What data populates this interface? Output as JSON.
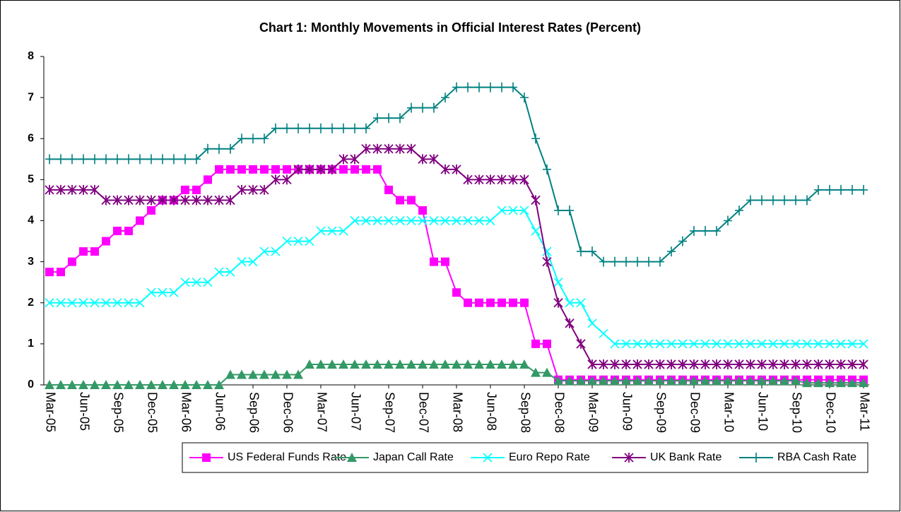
{
  "chart_data": {
    "type": "line",
    "title": "Chart 1: Monthly Movements in Official Interest Rates (Percent)",
    "categories": [
      "Mar-05",
      null,
      null,
      "Jun-05",
      null,
      null,
      "Sep-05",
      null,
      null,
      "Dec-05",
      null,
      null,
      "Mar-06",
      null,
      null,
      "Jun-06",
      null,
      null,
      "Sep-06",
      null,
      null,
      "Dec-06",
      null,
      null,
      "Mar-07",
      null,
      null,
      "Jun-07",
      null,
      null,
      "Sep-07",
      null,
      null,
      "Dec-07",
      null,
      null,
      "Mar-08",
      null,
      null,
      "Jun-08",
      null,
      null,
      "Sep-08",
      null,
      null,
      "Dec-08",
      null,
      null,
      "Mar-09",
      null,
      null,
      "Jun-09",
      null,
      null,
      "Sep-09",
      null,
      null,
      "Dec-09",
      null,
      null,
      "Mar-10",
      null,
      null,
      "Jun-10",
      null,
      null,
      "Sep-10",
      null,
      null,
      "Dec-10",
      null,
      null,
      "Mar-11"
    ],
    "ylim": [
      0,
      8
    ],
    "yticks": [
      0,
      1,
      2,
      3,
      4,
      5,
      6,
      7,
      8
    ],
    "grid": false,
    "legend": "bottom",
    "series": [
      {
        "name": "US Federal Funds Rate",
        "color": "#ff00ff",
        "marker": "square",
        "values": [
          2.75,
          2.75,
          3,
          3.25,
          3.25,
          3.5,
          3.75,
          3.75,
          4,
          4.25,
          4.5,
          4.5,
          4.75,
          4.75,
          5,
          5.25,
          5.25,
          5.25,
          5.25,
          5.25,
          5.25,
          5.25,
          5.25,
          5.25,
          5.25,
          5.25,
          5.25,
          5.25,
          5.25,
          5.25,
          4.75,
          4.5,
          4.5,
          4.25,
          3,
          3,
          2.25,
          2,
          2,
          2,
          2,
          2,
          2,
          1,
          1,
          0.125,
          0.125,
          0.125,
          0.125,
          0.125,
          0.125,
          0.125,
          0.125,
          0.125,
          0.125,
          0.125,
          0.125,
          0.125,
          0.125,
          0.125,
          0.125,
          0.125,
          0.125,
          0.125,
          0.125,
          0.125,
          0.125,
          0.125,
          0.125,
          0.125,
          0.125,
          0.125,
          0.125
        ]
      },
      {
        "name": "Japan Call Rate",
        "color": "#339966",
        "marker": "triangle",
        "values": [
          0,
          0,
          0,
          0,
          0,
          0,
          0,
          0,
          0,
          0,
          0,
          0,
          0,
          0,
          0,
          0,
          0.25,
          0.25,
          0.25,
          0.25,
          0.25,
          0.25,
          0.25,
          0.5,
          0.5,
          0.5,
          0.5,
          0.5,
          0.5,
          0.5,
          0.5,
          0.5,
          0.5,
          0.5,
          0.5,
          0.5,
          0.5,
          0.5,
          0.5,
          0.5,
          0.5,
          0.5,
          0.5,
          0.3,
          0.3,
          0.1,
          0.1,
          0.1,
          0.1,
          0.1,
          0.1,
          0.1,
          0.1,
          0.1,
          0.1,
          0.1,
          0.1,
          0.1,
          0.1,
          0.1,
          0.1,
          0.1,
          0.1,
          0.1,
          0.1,
          0.1,
          0.1,
          0.05,
          0.05,
          0.05,
          0.05,
          0.05,
          0.05
        ]
      },
      {
        "name": "Euro Repo Rate",
        "color": "#00ffff",
        "marker": "x",
        "values": [
          2,
          2,
          2,
          2,
          2,
          2,
          2,
          2,
          2,
          2.25,
          2.25,
          2.25,
          2.5,
          2.5,
          2.5,
          2.75,
          2.75,
          3,
          3,
          3.25,
          3.25,
          3.5,
          3.5,
          3.5,
          3.75,
          3.75,
          3.75,
          4,
          4,
          4,
          4,
          4,
          4,
          4,
          4,
          4,
          4,
          4,
          4,
          4,
          4.25,
          4.25,
          4.25,
          3.75,
          3.25,
          2.5,
          2,
          2,
          1.5,
          1.25,
          1,
          1,
          1,
          1,
          1,
          1,
          1,
          1,
          1,
          1,
          1,
          1,
          1,
          1,
          1,
          1,
          1,
          1,
          1,
          1,
          1,
          1,
          1
        ]
      },
      {
        "name": "UK Bank Rate",
        "color": "#800080",
        "marker": "star",
        "values": [
          4.75,
          4.75,
          4.75,
          4.75,
          4.75,
          4.5,
          4.5,
          4.5,
          4.5,
          4.5,
          4.5,
          4.5,
          4.5,
          4.5,
          4.5,
          4.5,
          4.5,
          4.75,
          4.75,
          4.75,
          5,
          5,
          5.25,
          5.25,
          5.25,
          5.25,
          5.5,
          5.5,
          5.75,
          5.75,
          5.75,
          5.75,
          5.75,
          5.5,
          5.5,
          5.25,
          5.25,
          5,
          5,
          5,
          5,
          5,
          5,
          4.5,
          3,
          2,
          1.5,
          1,
          0.5,
          0.5,
          0.5,
          0.5,
          0.5,
          0.5,
          0.5,
          0.5,
          0.5,
          0.5,
          0.5,
          0.5,
          0.5,
          0.5,
          0.5,
          0.5,
          0.5,
          0.5,
          0.5,
          0.5,
          0.5,
          0.5,
          0.5,
          0.5,
          0.5
        ]
      },
      {
        "name": "RBA Cash Rate",
        "color": "#008080",
        "marker": "plus",
        "values": [
          5.5,
          5.5,
          5.5,
          5.5,
          5.5,
          5.5,
          5.5,
          5.5,
          5.5,
          5.5,
          5.5,
          5.5,
          5.5,
          5.5,
          5.75,
          5.75,
          5.75,
          6,
          6,
          6,
          6.25,
          6.25,
          6.25,
          6.25,
          6.25,
          6.25,
          6.25,
          6.25,
          6.25,
          6.5,
          6.5,
          6.5,
          6.75,
          6.75,
          6.75,
          7,
          7.25,
          7.25,
          7.25,
          7.25,
          7.25,
          7.25,
          7,
          6,
          5.25,
          4.25,
          4.25,
          3.25,
          3.25,
          3,
          3,
          3,
          3,
          3,
          3,
          3.25,
          3.5,
          3.75,
          3.75,
          3.75,
          4,
          4.25,
          4.5,
          4.5,
          4.5,
          4.5,
          4.5,
          4.5,
          4.75,
          4.75,
          4.75,
          4.75,
          4.75
        ]
      }
    ]
  }
}
